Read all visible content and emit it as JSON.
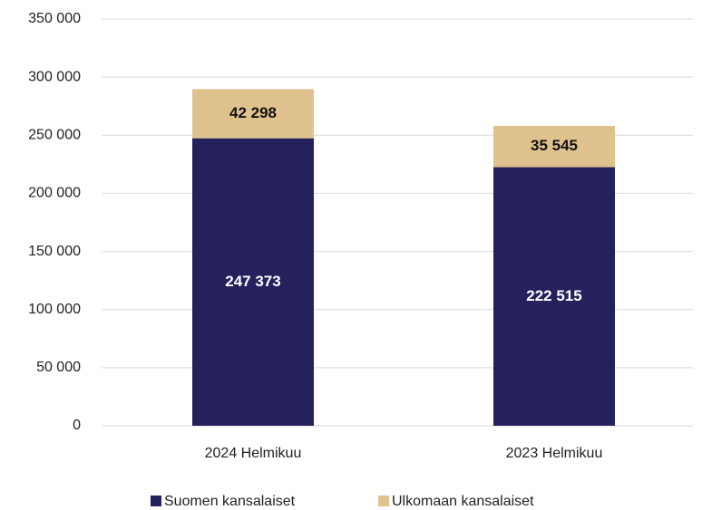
{
  "chart_data": {
    "type": "stacked_bar",
    "categories": [
      "2024 Helmikuu",
      "2023 Helmikuu"
    ],
    "series": [
      {
        "name": "Suomen kansalaiset",
        "color": "#25215c",
        "values": [
          247373,
          222515
        ],
        "value_labels": [
          "247 373",
          "222 515"
        ]
      },
      {
        "name": "Ulkomaan kansalaiset",
        "color": "#e0c28e",
        "values": [
          42298,
          35545
        ],
        "value_labels": [
          "42 298",
          "35 545"
        ]
      }
    ],
    "ylim": [
      0,
      350000
    ],
    "yticks": [
      {
        "value": 0,
        "label": "0"
      },
      {
        "value": 50000,
        "label": "50 000"
      },
      {
        "value": 100000,
        "label": "100 000"
      },
      {
        "value": 150000,
        "label": "150 000"
      },
      {
        "value": 200000,
        "label": "200 000"
      },
      {
        "value": 250000,
        "label": "250 000"
      },
      {
        "value": 300000,
        "label": "300 000"
      },
      {
        "value": 350000,
        "label": "350 000"
      }
    ],
    "grid": true,
    "legend": "bottom"
  }
}
